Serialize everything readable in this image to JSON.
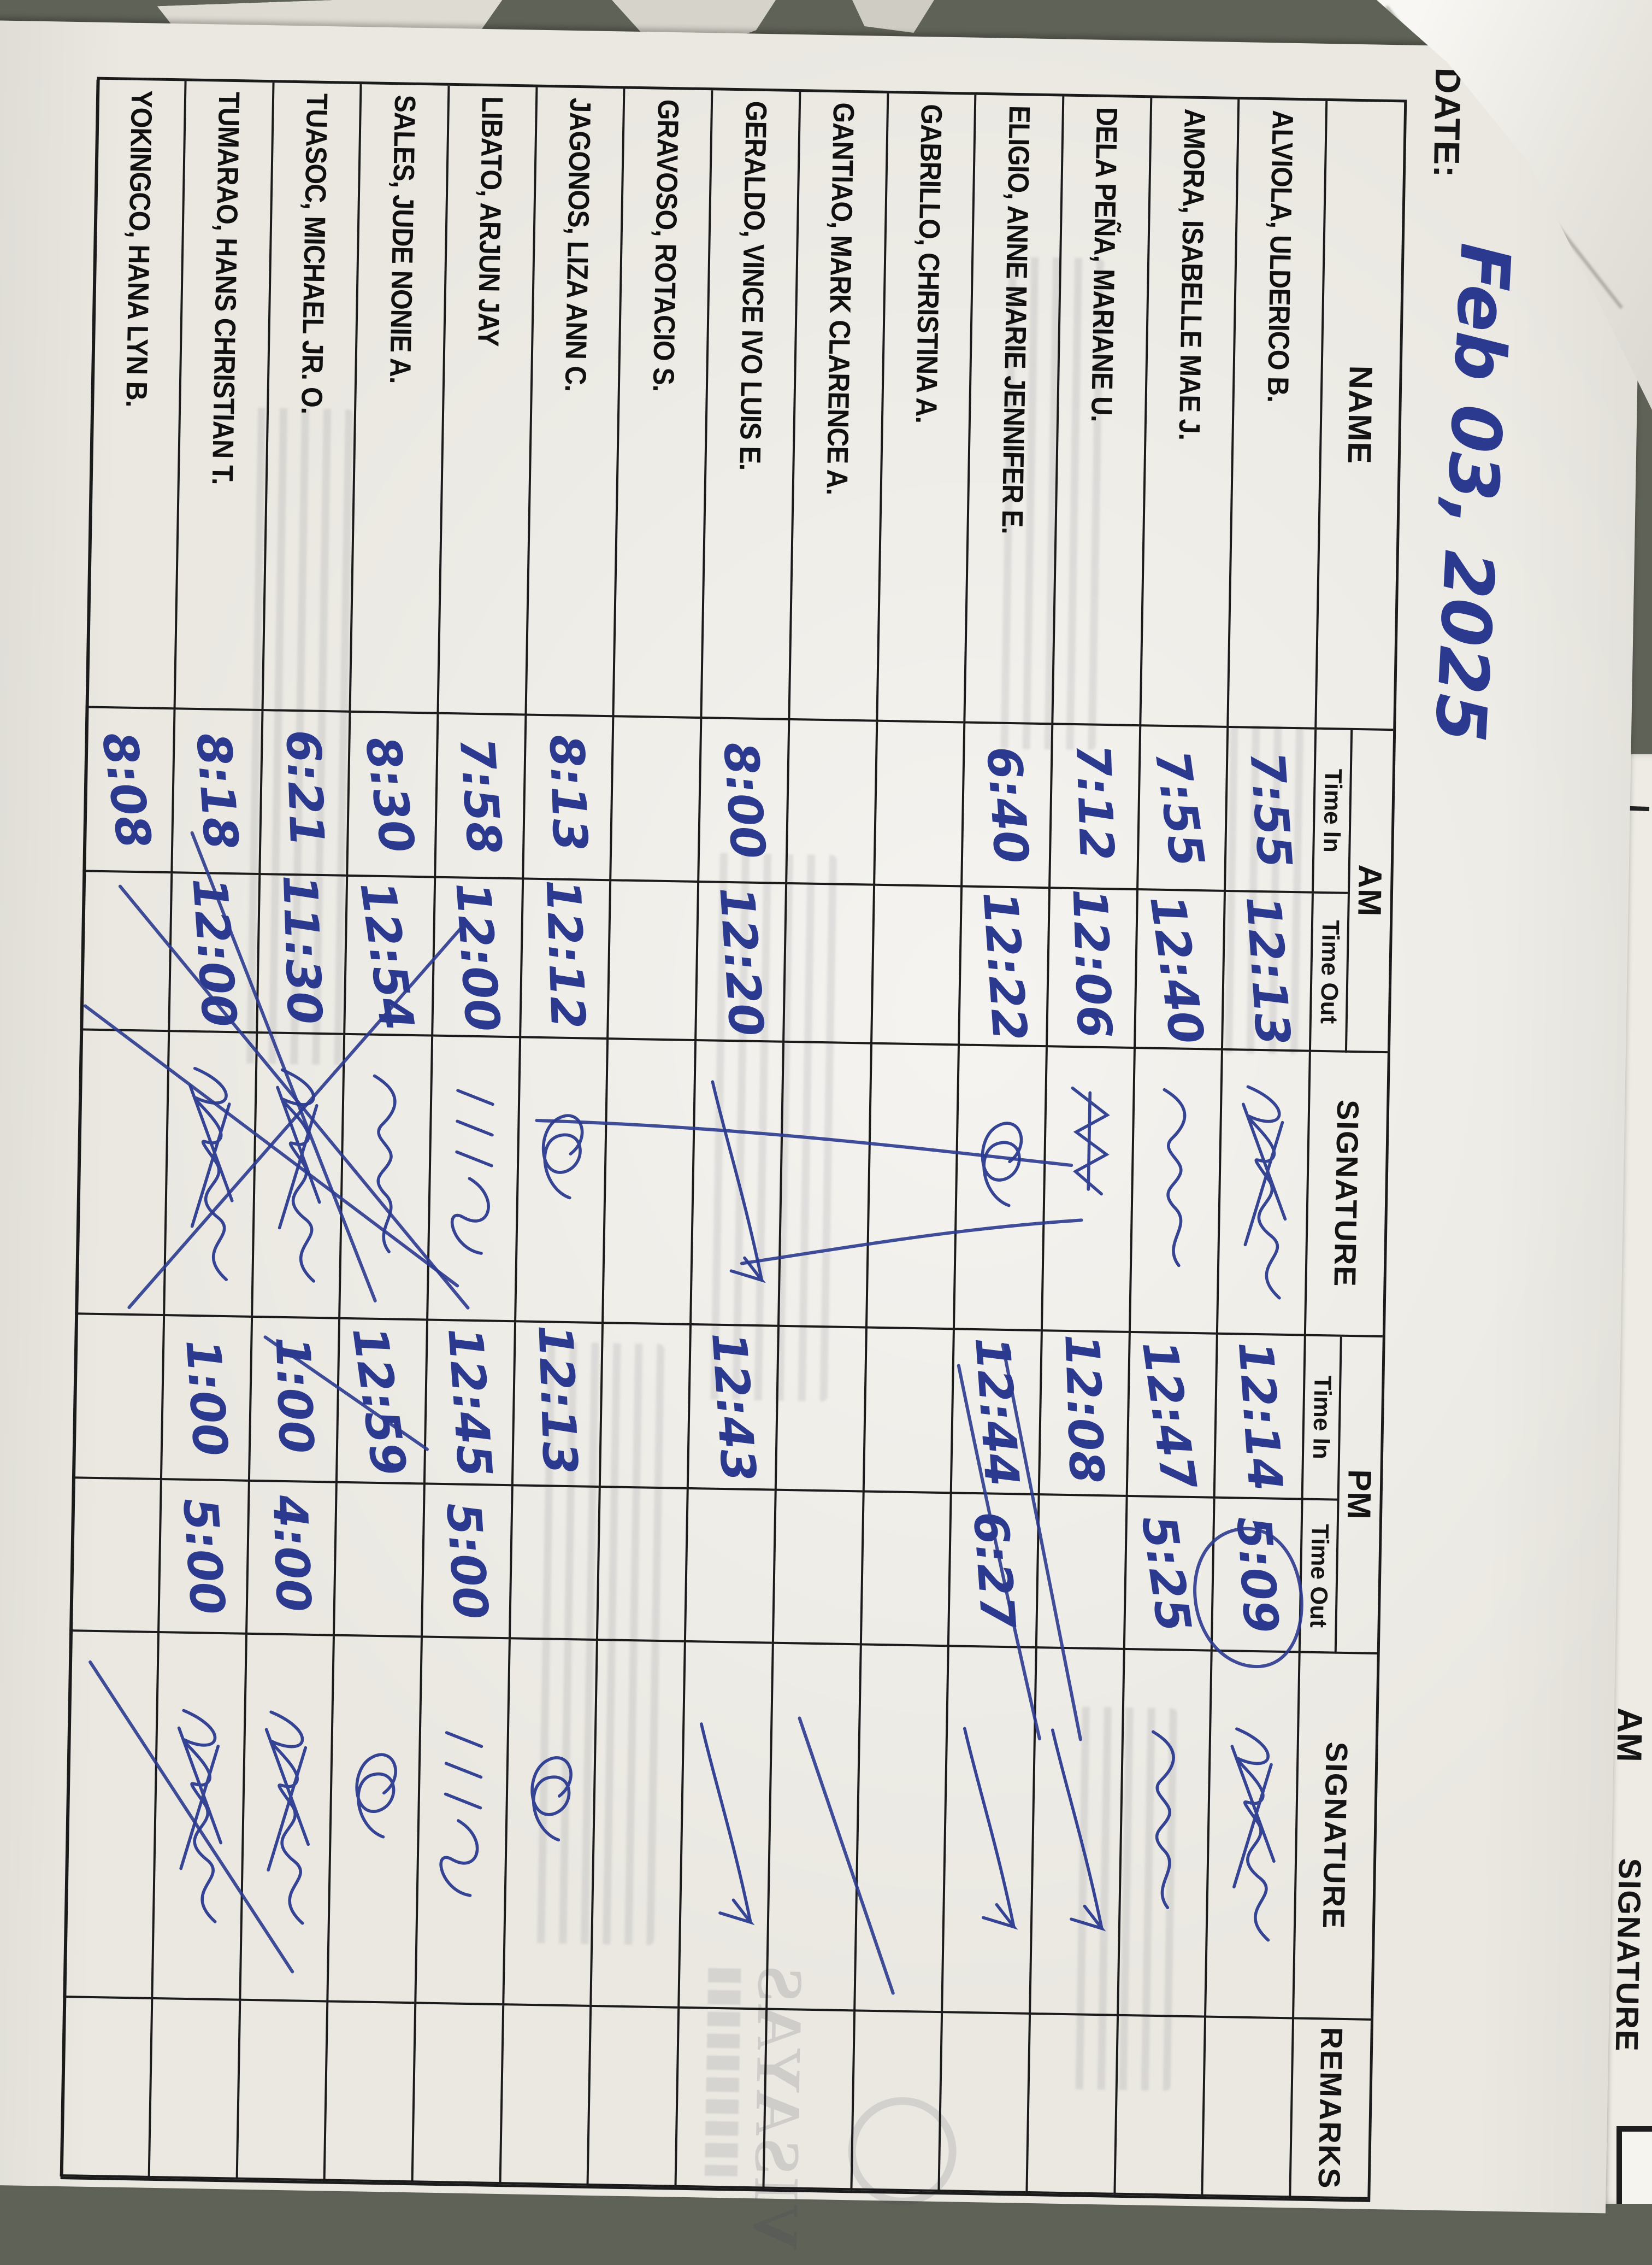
{
  "photo": {
    "background_color": "#5f6257",
    "paper_color": "#eae8e1",
    "ink_color": "#2b3a8f",
    "line_color": "#1b1b1b",
    "orientation": "paper rotated 90 degrees clockwise in photo"
  },
  "form": {
    "date_label": "DATE:",
    "date_value": "Feb 03, 2025",
    "headers": {
      "name": "NAME",
      "am": "AM",
      "pm": "PM",
      "time_in": "Time In",
      "time_out": "Time Out",
      "signature": "SIGNATURE",
      "remarks": "REMARKS"
    },
    "rows": [
      {
        "name": "ALVIOLA, ULDERICO B.",
        "am_in": "7:55",
        "am_out": "12:13",
        "am_sig": "dense",
        "pm_in": "12:14",
        "pm_out": "5:09",
        "pm_sig": "dense",
        "remarks": ""
      },
      {
        "name": "AMORA, ISABELLE MAE J.",
        "am_in": "7:55",
        "am_out": "12:40",
        "am_sig": "cursive",
        "pm_in": "12:47",
        "pm_out": "5:25",
        "pm_sig": "cursive",
        "remarks": ""
      },
      {
        "name": "DELA PEÑA, MARIANE U.",
        "am_in": "7:12",
        "am_out": "12:06",
        "am_sig": "zigzag",
        "pm_in": "12:08",
        "pm_out": "",
        "pm_sig": "swoosh",
        "remarks": ""
      },
      {
        "name": "ELIGIO, ANNE MARIE JENNIFER E.",
        "am_in": "6:40",
        "am_out": "12:22",
        "am_sig": "loop8",
        "pm_in": "12:44",
        "pm_out": "6:27",
        "pm_sig": "swoosh",
        "remarks": ""
      },
      {
        "name": "GABRILLO, CHRISTINA A.",
        "am_in": "",
        "am_out": "",
        "am_sig": "none",
        "pm_in": "",
        "pm_out": "",
        "pm_sig": "none",
        "remarks": ""
      },
      {
        "name": "GANTIAO, MARK CLARENCE A.",
        "am_in": "",
        "am_out": "",
        "am_sig": "none",
        "pm_in": "",
        "pm_out": "",
        "pm_sig": "none",
        "remarks": ""
      },
      {
        "name": "GERALDO, VINCE IVO LUIS E.",
        "am_in": "8:00",
        "am_out": "12:20",
        "am_sig": "swoosh",
        "pm_in": "12:43",
        "pm_out": "",
        "pm_sig": "swoosh",
        "remarks": ""
      },
      {
        "name": "GRAVOSO, ROTACIO S.",
        "am_in": "",
        "am_out": "",
        "am_sig": "none",
        "pm_in": "",
        "pm_out": "",
        "pm_sig": "none",
        "remarks": ""
      },
      {
        "name": "JAGONOS, LIZA ANN C.",
        "am_in": "8:13",
        "am_out": "12:12",
        "am_sig": "loop8",
        "pm_in": "12:13",
        "pm_out": "",
        "pm_sig": "loop8",
        "remarks": ""
      },
      {
        "name": "LIBATO, ARJUN JAY",
        "am_in": "7:58",
        "am_out": "12:00",
        "am_sig": "ones",
        "pm_in": "12:45",
        "pm_out": "5:00",
        "pm_sig": "ones",
        "remarks": ""
      },
      {
        "name": "SALES, JUDE NONIE A.",
        "am_in": "8:30",
        "am_out": "12:54",
        "am_sig": "cursive",
        "pm_in": "12:59",
        "pm_out": "",
        "pm_sig": "loop8",
        "remarks": ""
      },
      {
        "name": "TUASOC, MICHAEL JR. O.",
        "am_in": "6:21",
        "am_out": "11:30",
        "am_sig": "dense",
        "pm_in": "1:00",
        "pm_out": "4:00",
        "pm_sig": "dense",
        "remarks": ""
      },
      {
        "name": "TUMARAO, HANS CHRISTIAN T.",
        "am_in": "8:18",
        "am_out": "12:00",
        "am_sig": "dense",
        "pm_in": "1:00",
        "pm_out": "5:00",
        "pm_sig": "dense",
        "remarks": ""
      },
      {
        "name": "YOKINGCO, HANA LYN B.",
        "am_in": "8:08",
        "am_out": "",
        "am_sig": "none",
        "pm_in": "",
        "pm_out": "",
        "pm_sig": "none",
        "remarks": ""
      }
    ]
  },
  "under_sheet": {
    "labels": [
      "AM",
      "SIGNATURE"
    ]
  },
  "ghost": {
    "logo_text": "VISAYAS"
  }
}
